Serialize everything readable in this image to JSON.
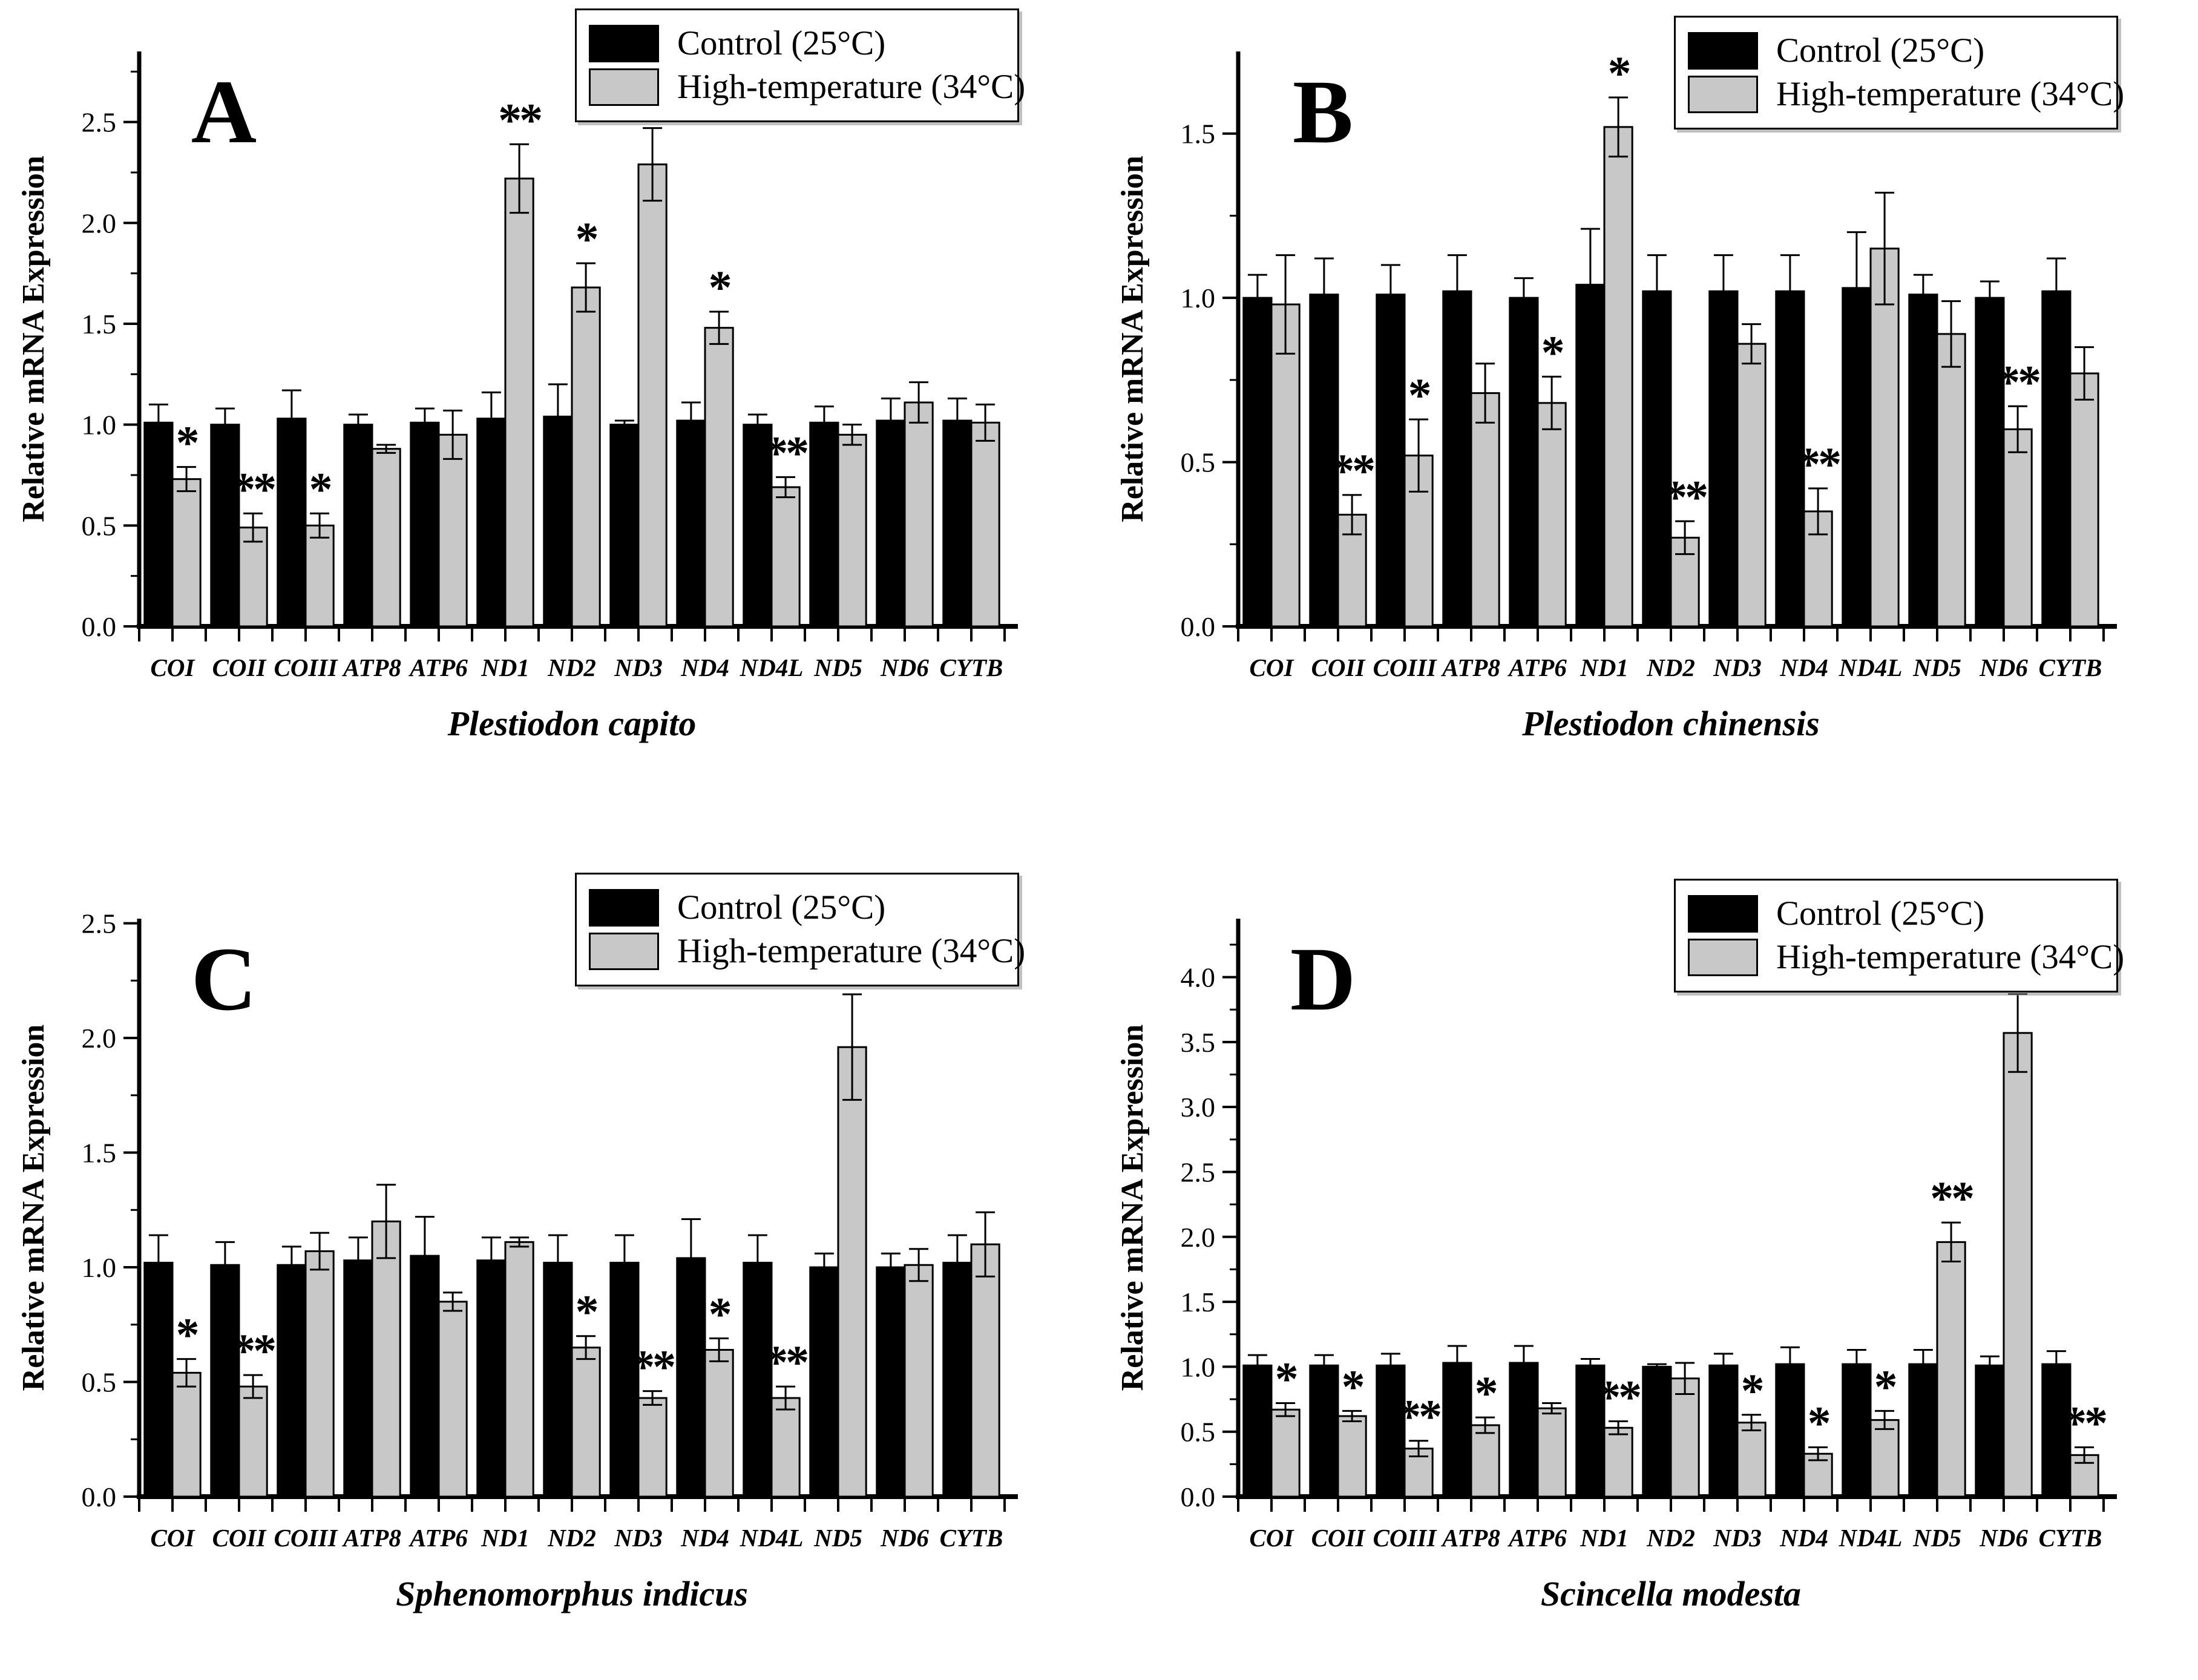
{
  "figure": {
    "ylabel": "Relative mRNA Expression",
    "legend": {
      "control": "Control (25°C)",
      "high": "High-temperature (34°C)"
    },
    "colors": {
      "control": "#000000",
      "high": "#c8c8c8",
      "outline": "#000000"
    }
  },
  "chart_data": [
    {
      "type": "bar",
      "panel": "A",
      "title": "Plestiodon capito",
      "xlabel": "Plestiodon capito",
      "ylabel": "Relative mRNA Expression",
      "categories": [
        "COI",
        "COII",
        "COIII",
        "ATP8",
        "ATP6",
        "ND1",
        "ND2",
        "ND3",
        "ND4",
        "ND4L",
        "ND5",
        "ND6",
        "CYTB"
      ],
      "series": [
        {
          "name": "Control (25°C)",
          "values": [
            1.01,
            1.0,
            1.03,
            1.0,
            1.01,
            1.03,
            1.04,
            1.0,
            1.02,
            1.0,
            1.01,
            1.02,
            1.02
          ],
          "errors": [
            0.09,
            0.08,
            0.14,
            0.05,
            0.07,
            0.13,
            0.16,
            0.02,
            0.09,
            0.05,
            0.08,
            0.11,
            0.11
          ]
        },
        {
          "name": "High-temperature (34°C)",
          "values": [
            0.73,
            0.49,
            0.5,
            0.88,
            0.95,
            2.22,
            1.68,
            2.29,
            1.48,
            0.69,
            0.95,
            1.11,
            1.01
          ],
          "errors": [
            0.06,
            0.07,
            0.06,
            0.02,
            0.12,
            0.17,
            0.12,
            0.18,
            0.08,
            0.05,
            0.05,
            0.1,
            0.09
          ]
        }
      ],
      "significance": [
        "*",
        "**",
        "*",
        "",
        "",
        "**",
        "*",
        "**",
        "*",
        "**",
        "",
        "",
        ""
      ],
      "ylim": [
        0,
        2.85
      ],
      "yticks": [
        0.0,
        0.5,
        1.0,
        1.5,
        2.0,
        2.5
      ],
      "minor_tick_step": 0.25,
      "grid": false,
      "legend_position": "top-right"
    },
    {
      "type": "bar",
      "panel": "B",
      "title": "Plestiodon chinensis",
      "xlabel": "Plestiodon chinensis",
      "ylabel": "Relative mRNA Expression",
      "categories": [
        "COI",
        "COII",
        "COIII",
        "ATP8",
        "ATP6",
        "ND1",
        "ND2",
        "ND3",
        "ND4",
        "ND4L",
        "ND5",
        "ND6",
        "CYTB"
      ],
      "series": [
        {
          "name": "Control (25°C)",
          "values": [
            1.0,
            1.01,
            1.01,
            1.02,
            1.0,
            1.04,
            1.02,
            1.02,
            1.02,
            1.03,
            1.01,
            1.0,
            1.02
          ],
          "errors": [
            0.07,
            0.11,
            0.09,
            0.11,
            0.06,
            0.17,
            0.11,
            0.11,
            0.11,
            0.17,
            0.06,
            0.05,
            0.1
          ]
        },
        {
          "name": "High-temperature (34°C)",
          "values": [
            0.98,
            0.34,
            0.52,
            0.71,
            0.68,
            1.52,
            0.27,
            0.86,
            0.35,
            1.15,
            0.89,
            0.6,
            0.77
          ],
          "errors": [
            0.15,
            0.06,
            0.11,
            0.09,
            0.08,
            0.09,
            0.05,
            0.06,
            0.07,
            0.17,
            0.1,
            0.07,
            0.08
          ]
        }
      ],
      "significance": [
        "",
        "**",
        "*",
        "",
        "*",
        "*",
        "**",
        "",
        "**",
        "",
        "",
        "**",
        ""
      ],
      "ylim": [
        0,
        1.75
      ],
      "yticks": [
        0.0,
        0.5,
        1.0,
        1.5
      ],
      "minor_tick_step": 0.25,
      "grid": false,
      "legend_position": "top-right"
    },
    {
      "type": "bar",
      "panel": "C",
      "title": "Sphenomorphus indicus",
      "xlabel": "Sphenomorphus indicus",
      "ylabel": "Relative mRNA Expression",
      "categories": [
        "COI",
        "COII",
        "COIII",
        "ATP8",
        "ATP6",
        "ND1",
        "ND2",
        "ND3",
        "ND4",
        "ND4L",
        "ND5",
        "ND6",
        "CYTB"
      ],
      "series": [
        {
          "name": "Control (25°C)",
          "values": [
            1.02,
            1.01,
            1.01,
            1.03,
            1.05,
            1.03,
            1.02,
            1.02,
            1.04,
            1.02,
            1.0,
            1.0,
            1.02
          ],
          "errors": [
            0.12,
            0.1,
            0.08,
            0.1,
            0.17,
            0.1,
            0.12,
            0.12,
            0.17,
            0.12,
            0.06,
            0.06,
            0.12
          ]
        },
        {
          "name": "High-temperature (34°C)",
          "values": [
            0.54,
            0.48,
            1.07,
            1.2,
            0.85,
            1.11,
            0.65,
            0.43,
            0.64,
            0.43,
            1.96,
            1.01,
            1.1
          ],
          "errors": [
            0.06,
            0.05,
            0.08,
            0.16,
            0.04,
            0.02,
            0.05,
            0.03,
            0.05,
            0.05,
            0.23,
            0.07,
            0.14
          ]
        }
      ],
      "significance": [
        "*",
        "**",
        "",
        "",
        "",
        "",
        "*",
        "**",
        "*",
        "**",
        "*",
        "",
        ""
      ],
      "ylim": [
        0,
        2.52
      ],
      "yticks": [
        0.0,
        0.5,
        1.0,
        1.5,
        2.0,
        2.5
      ],
      "minor_tick_step": 0.25,
      "grid": false,
      "legend_position": "top-right"
    },
    {
      "type": "bar",
      "panel": "D",
      "title": "Scincella modesta",
      "xlabel": "Scincella modesta",
      "ylabel": "Relative mRNA Expression",
      "categories": [
        "COI",
        "COII",
        "COIII",
        "ATP8",
        "ATP6",
        "ND1",
        "ND2",
        "ND3",
        "ND4",
        "ND4L",
        "ND5",
        "ND6",
        "CYTB"
      ],
      "series": [
        {
          "name": "Control (25°C)",
          "values": [
            1.01,
            1.01,
            1.01,
            1.03,
            1.03,
            1.01,
            1.0,
            1.01,
            1.02,
            1.02,
            1.02,
            1.01,
            1.02
          ],
          "errors": [
            0.08,
            0.08,
            0.09,
            0.13,
            0.13,
            0.05,
            0.02,
            0.09,
            0.13,
            0.11,
            0.11,
            0.07,
            0.1
          ]
        },
        {
          "name": "High-temperature (34°C)",
          "values": [
            0.67,
            0.62,
            0.37,
            0.55,
            0.68,
            0.53,
            0.91,
            0.57,
            0.33,
            0.59,
            1.96,
            3.57,
            0.32
          ],
          "errors": [
            0.05,
            0.04,
            0.06,
            0.06,
            0.04,
            0.05,
            0.12,
            0.06,
            0.05,
            0.07,
            0.15,
            0.3,
            0.06
          ]
        }
      ],
      "significance": [
        "*",
        "*",
        "**",
        "*",
        "",
        "**",
        "",
        "*",
        "*",
        "*",
        "**",
        "**",
        "**"
      ],
      "ylim": [
        0,
        4.45
      ],
      "yticks": [
        0.0,
        0.5,
        1.0,
        1.5,
        2.0,
        2.5,
        3.0,
        3.5,
        4.0
      ],
      "minor_tick_step": 0.25,
      "grid": false,
      "legend_position": "top-right"
    }
  ]
}
